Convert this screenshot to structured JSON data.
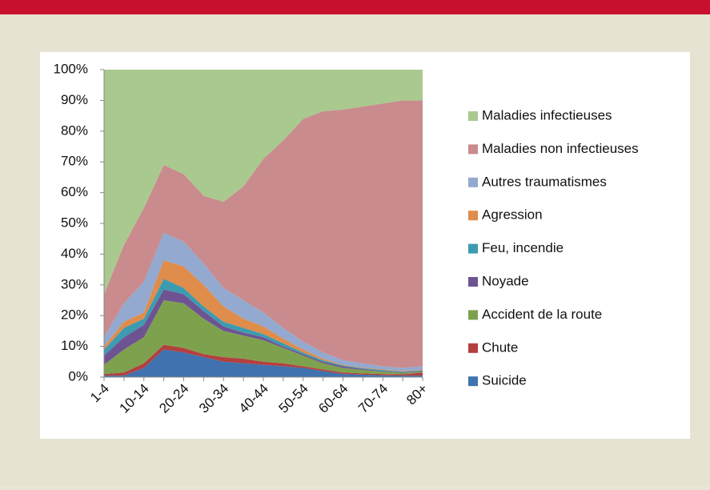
{
  "chart_data": {
    "type": "stacked-area",
    "categories": [
      "1-4",
      null,
      "10-14",
      null,
      "20-24",
      null,
      "30-34",
      null,
      "40-44",
      null,
      "50-54",
      null,
      "60-64",
      null,
      "70-74",
      null,
      "80+"
    ],
    "series": [
      {
        "name": "Suicide",
        "color": "#3f72ae",
        "values": [
          0.5,
          0.5,
          3,
          9,
          8,
          6.5,
          5,
          4.5,
          4,
          3.5,
          3,
          2,
          1,
          0.8,
          0.6,
          0.5,
          0.5
        ]
      },
      {
        "name": "Chute",
        "color": "#b3403e",
        "values": [
          0.5,
          1,
          1.5,
          1.5,
          1.5,
          1,
          1.5,
          1.5,
          1,
          1,
          0.5,
          0.5,
          0.5,
          0.4,
          0.4,
          0.4,
          1
        ]
      },
      {
        "name": "Accident de la route",
        "color": "#7ea14e",
        "values": [
          3,
          7.5,
          8.5,
          14.5,
          14.5,
          11.5,
          8.5,
          7.5,
          7,
          5,
          3.5,
          2,
          1.5,
          1.1,
          0.8,
          0.5,
          0.3
        ]
      },
      {
        "name": "Noyade",
        "color": "#6e5393",
        "values": [
          3,
          4,
          4,
          3.5,
          3,
          2.5,
          1.5,
          1,
          1,
          0.5,
          0.5,
          0.5,
          0.5,
          0.3,
          0.2,
          0.2,
          0.2
        ]
      },
      {
        "name": "Feu, incendie",
        "color": "#3d9bb0",
        "values": [
          2,
          3,
          2,
          3.5,
          2,
          1.5,
          1.5,
          1.5,
          1,
          1,
          0.5,
          0.5,
          0.3,
          0.3,
          0.3,
          0.2,
          0.2
        ]
      },
      {
        "name": "Agression",
        "color": "#e08c4a",
        "values": [
          1,
          2,
          2,
          6,
          7,
          7,
          5,
          3,
          2.5,
          1.5,
          1,
          0.5,
          0.2,
          0.2,
          0.2,
          0.2,
          0.2
        ]
      },
      {
        "name": "Autres traumatismes",
        "color": "#93a9cf",
        "values": [
          3,
          6,
          10,
          9,
          8,
          7,
          6,
          6,
          4.5,
          3.5,
          2.5,
          2,
          1.5,
          1.4,
          1,
          1,
          1.1
        ]
      },
      {
        "name": "Maladies non infectieuses",
        "color": "#c98b8e",
        "values": [
          14,
          19,
          24,
          22,
          22,
          22,
          28,
          37,
          50,
          61,
          72.5,
          78.5,
          81.5,
          83.5,
          85.5,
          87,
          86.5
        ]
      },
      {
        "name": "Maladies infectieuses",
        "color": "#a9c98f",
        "values": [
          73,
          57,
          45,
          31,
          34,
          41,
          43,
          38,
          29,
          23,
          16,
          13.5,
          13,
          12,
          11,
          10,
          10
        ]
      }
    ],
    "ylim": [
      0,
      100
    ],
    "yticks": [
      {
        "value": 0,
        "label": "0%"
      },
      {
        "value": 10,
        "label": "10%"
      },
      {
        "value": 20,
        "label": "20%"
      },
      {
        "value": 30,
        "label": "30%"
      },
      {
        "value": 40,
        "label": "40%"
      },
      {
        "value": 50,
        "label": "50%"
      },
      {
        "value": 60,
        "label": "60%"
      },
      {
        "value": 70,
        "label": "70%"
      },
      {
        "value": 80,
        "label": "80%"
      },
      {
        "value": 90,
        "label": "90%"
      },
      {
        "value": 100,
        "label": "100%"
      }
    ]
  }
}
